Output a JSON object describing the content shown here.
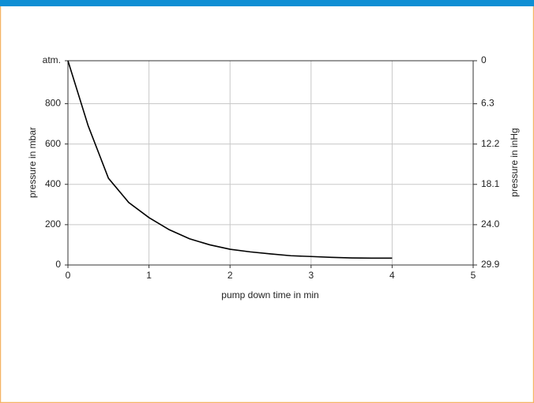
{
  "chart_data": {
    "type": "line",
    "x": [
      0,
      0.25,
      0.5,
      0.75,
      1,
      1.25,
      1.5,
      1.75,
      2,
      2.25,
      2.5,
      2.75,
      3,
      3.25,
      3.5,
      3.75,
      4
    ],
    "series": [
      {
        "color": "#000000",
        "values": [
          1013,
          690,
          430,
          310,
          235,
          175,
          130,
          100,
          78,
          65,
          55,
          46,
          42,
          38,
          35,
          34,
          34
        ]
      }
    ],
    "xlabel": "pump down time in min",
    "ylabel": "pressure in mbar",
    "y2label": "pressure in inHg",
    "xlim": [
      0,
      5
    ],
    "xticks": [
      0,
      1,
      2,
      3,
      4,
      5
    ],
    "ylim": [
      0,
      1013
    ],
    "yticks": [
      0,
      200,
      400,
      600,
      800,
      {
        "value": 1013,
        "label": "atm."
      }
    ],
    "y2lim": [
      29.9,
      0
    ],
    "y2ticks": [
      0,
      6.3,
      12.2,
      18.1,
      {
        "value": 24,
        "label": "24.0"
      },
      29.9
    ],
    "grid": true
  }
}
